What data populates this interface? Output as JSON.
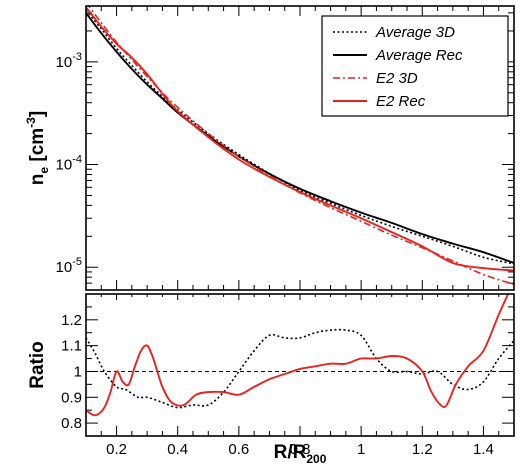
{
  "chart_data": [
    {
      "type": "line",
      "panel": "top",
      "ylabel_base": "n",
      "ylabel_sub": "e",
      "ylabel_unit_open": " [cm",
      "ylabel_unit_sup": "-3",
      "ylabel_unit_close": "]",
      "yscale": "log",
      "xlim": [
        0.1,
        1.5
      ],
      "ylim": [
        6e-06,
        0.0035
      ],
      "yticks": [
        {
          "value": 1e-05,
          "base": "10",
          "exp": "-5"
        },
        {
          "value": 0.0001,
          "base": "10",
          "exp": "-4"
        },
        {
          "value": 0.001,
          "base": "10",
          "exp": "-3"
        }
      ],
      "legend_position": "top-right",
      "series": [
        {
          "name": "Average 3D",
          "color": "#000000",
          "style": "dotted",
          "x": [
            0.1,
            0.15,
            0.2,
            0.25,
            0.3,
            0.35,
            0.4,
            0.5,
            0.6,
            0.7,
            0.8,
            0.9,
            1.0,
            1.1,
            1.2,
            1.3,
            1.4,
            1.5
          ],
          "y": [
            0.0032,
            0.0021,
            0.00135,
            0.00092,
            0.00064,
            0.00046,
            0.00034,
            0.0002,
            0.000125,
            8.2e-05,
            5.6e-05,
            4.2e-05,
            3.2e-05,
            2.5e-05,
            2e-05,
            1.6e-05,
            1.25e-05,
            1.08e-05
          ]
        },
        {
          "name": "Average Rec",
          "color": "#000000",
          "style": "solid",
          "x": [
            0.1,
            0.15,
            0.2,
            0.25,
            0.3,
            0.35,
            0.4,
            0.5,
            0.6,
            0.7,
            0.8,
            0.9,
            1.0,
            1.1,
            1.2,
            1.3,
            1.4,
            1.5
          ],
          "y": [
            0.003,
            0.0019,
            0.00125,
            0.00085,
            0.0006,
            0.00044,
            0.00032,
            0.00019,
            0.00012,
            8.1e-05,
            5.8e-05,
            4.4e-05,
            3.4e-05,
            2.7e-05,
            2.1e-05,
            1.7e-05,
            1.4e-05,
            1.1e-05
          ]
        },
        {
          "name": "E2 3D",
          "color": "#e8231f",
          "style": "dashdot",
          "x": [
            0.1,
            0.15,
            0.2,
            0.25,
            0.3,
            0.35,
            0.4,
            0.5,
            0.6,
            0.7,
            0.8,
            0.9,
            1.0,
            1.1,
            1.2,
            1.3,
            1.4,
            1.5
          ],
          "y": [
            0.0038,
            0.0024,
            0.00155,
            0.00105,
            0.00072,
            0.0005,
            0.00036,
            0.0002,
            0.00012,
            7.8e-05,
            5.3e-05,
            3.8e-05,
            2.8e-05,
            2.05e-05,
            1.55e-05,
            1.15e-05,
            8.5e-06,
            6.8e-06
          ]
        },
        {
          "name": "E2 Rec",
          "color": "#e8231f",
          "style": "solid",
          "x": [
            0.1,
            0.15,
            0.2,
            0.25,
            0.3,
            0.35,
            0.4,
            0.5,
            0.6,
            0.7,
            0.8,
            0.9,
            1.0,
            1.1,
            1.2,
            1.3,
            1.4,
            1.5
          ],
          "y": [
            0.0034,
            0.0022,
            0.0015,
            0.0011,
            0.00076,
            0.00049,
            0.00033,
            0.000185,
            0.000112,
            7.6e-05,
            5.4e-05,
            4e-05,
            3e-05,
            2.2e-05,
            1.6e-05,
            1.1e-05,
            9.8e-06,
            9.3e-06
          ]
        }
      ]
    },
    {
      "type": "line",
      "panel": "bottom",
      "xlabel_base": "R/R",
      "xlabel_sub": "200",
      "ylabel": "Ratio",
      "xlim": [
        0.1,
        1.5
      ],
      "ylim": [
        0.75,
        1.3
      ],
      "xticks": [
        0.2,
        0.4,
        0.6,
        0.8,
        1,
        1.2,
        1.4
      ],
      "xtick_labels": [
        "0.2",
        "0.4",
        "0.6",
        "0.8",
        "1",
        "1.2",
        "1.4"
      ],
      "yticks": [
        0.8,
        0.9,
        1,
        1.1,
        1.2
      ],
      "ytick_labels": [
        "0.8",
        "0.9",
        "1",
        "1.1",
        "1.2"
      ],
      "reference_line": 1,
      "series": [
        {
          "color": "#000000",
          "style": "dotted",
          "x": [
            0.1,
            0.13,
            0.16,
            0.2,
            0.23,
            0.27,
            0.3,
            0.35,
            0.4,
            0.45,
            0.5,
            0.55,
            0.6,
            0.65,
            0.7,
            0.75,
            0.8,
            0.85,
            0.9,
            0.95,
            1.0,
            1.05,
            1.1,
            1.15,
            1.2,
            1.25,
            1.3,
            1.35,
            1.4,
            1.45,
            1.5
          ],
          "y": [
            1.13,
            1.07,
            1.0,
            0.94,
            0.93,
            0.9,
            0.9,
            0.88,
            0.86,
            0.87,
            0.87,
            0.92,
            1.0,
            1.08,
            1.14,
            1.13,
            1.13,
            1.15,
            1.16,
            1.16,
            1.14,
            1.05,
            1.0,
            1.0,
            0.99,
            1.0,
            0.95,
            0.93,
            0.96,
            1.05,
            1.12
          ]
        },
        {
          "color": "#e8231f",
          "style": "solid",
          "x": [
            0.1,
            0.13,
            0.16,
            0.18,
            0.2,
            0.22,
            0.24,
            0.26,
            0.28,
            0.3,
            0.32,
            0.35,
            0.38,
            0.42,
            0.46,
            0.5,
            0.55,
            0.6,
            0.65,
            0.7,
            0.75,
            0.8,
            0.85,
            0.9,
            0.95,
            1.0,
            1.05,
            1.1,
            1.15,
            1.2,
            1.23,
            1.26,
            1.28,
            1.31,
            1.35,
            1.4,
            1.45,
            1.5
          ],
          "y": [
            0.85,
            0.83,
            0.86,
            0.92,
            1.0,
            0.96,
            0.95,
            1.02,
            1.08,
            1.1,
            1.05,
            0.94,
            0.88,
            0.87,
            0.91,
            0.92,
            0.92,
            0.91,
            0.94,
            0.97,
            0.99,
            1.01,
            1.02,
            1.03,
            1.03,
            1.05,
            1.05,
            1.06,
            1.05,
            1.0,
            0.92,
            0.87,
            0.87,
            0.95,
            1.02,
            1.08,
            1.22,
            1.35
          ]
        }
      ]
    }
  ]
}
